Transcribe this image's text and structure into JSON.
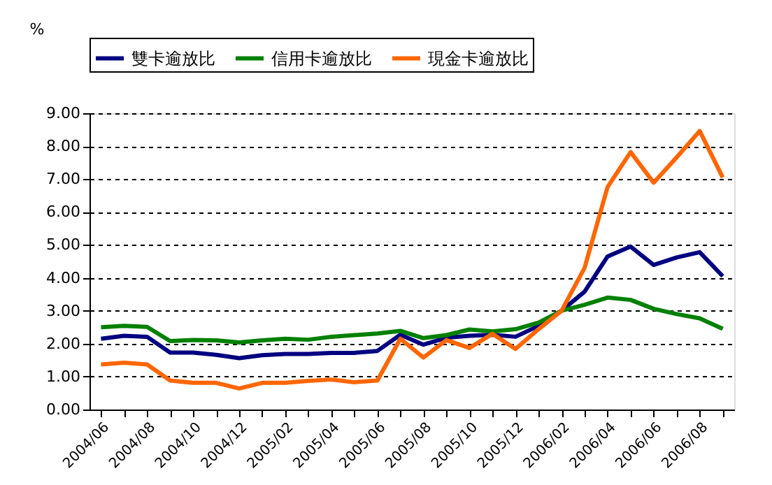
{
  "chart_data": {
    "type": "line",
    "ylabel": "%",
    "categories": [
      "2004/06",
      null,
      "2004/08",
      null,
      "2004/10",
      null,
      "2004/12",
      null,
      "2005/02",
      null,
      "2005/04",
      null,
      "2005/06",
      null,
      "2005/08",
      null,
      "2005/10",
      null,
      "2005/12",
      null,
      "2006/02",
      null,
      "2006/04",
      null,
      "2006/06",
      null,
      "2006/08",
      null
    ],
    "series": [
      {
        "name": "雙卡逾放比",
        "color": "#000080",
        "values": [
          2.15,
          2.24,
          2.21,
          1.73,
          1.73,
          1.66,
          1.56,
          1.65,
          1.69,
          1.69,
          1.72,
          1.72,
          1.78,
          2.27,
          1.97,
          2.18,
          2.24,
          2.27,
          2.21,
          2.54,
          3.0,
          3.58,
          4.65,
          4.95,
          4.39,
          4.62,
          4.78,
          4.05
        ]
      },
      {
        "name": "信用卡逾放比",
        "color": "#008000",
        "values": [
          2.5,
          2.54,
          2.51,
          2.08,
          2.11,
          2.1,
          2.04,
          2.1,
          2.15,
          2.12,
          2.21,
          2.26,
          2.31,
          2.39,
          2.17,
          2.26,
          2.43,
          2.37,
          2.44,
          2.64,
          3.0,
          3.18,
          3.4,
          3.33,
          3.06,
          2.9,
          2.77,
          2.45
        ]
      },
      {
        "name": "現金卡逾放比",
        "color": "#ff6600",
        "values": [
          1.37,
          1.42,
          1.37,
          0.88,
          0.81,
          0.81,
          0.64,
          0.81,
          0.81,
          0.87,
          0.91,
          0.83,
          0.88,
          2.15,
          1.58,
          2.11,
          1.87,
          2.3,
          1.84,
          2.44,
          3.0,
          4.3,
          6.76,
          7.82,
          6.89,
          7.66,
          8.46,
          7.05
        ]
      }
    ],
    "ylim": [
      0,
      9
    ],
    "yticks": [
      {
        "value": 0,
        "label": "0.00"
      },
      {
        "value": 1,
        "label": "1.00"
      },
      {
        "value": 2,
        "label": "2.00"
      },
      {
        "value": 3,
        "label": "3.00"
      },
      {
        "value": 4,
        "label": "4.00"
      },
      {
        "value": 5,
        "label": "5.00"
      },
      {
        "value": 6,
        "label": "6.00"
      },
      {
        "value": 7,
        "label": "7.00"
      },
      {
        "value": 8,
        "label": "8.00"
      },
      {
        "value": 9,
        "label": "9.00"
      }
    ],
    "grid": "y",
    "legend": "top",
    "marker": "none",
    "line_style": "solid"
  }
}
